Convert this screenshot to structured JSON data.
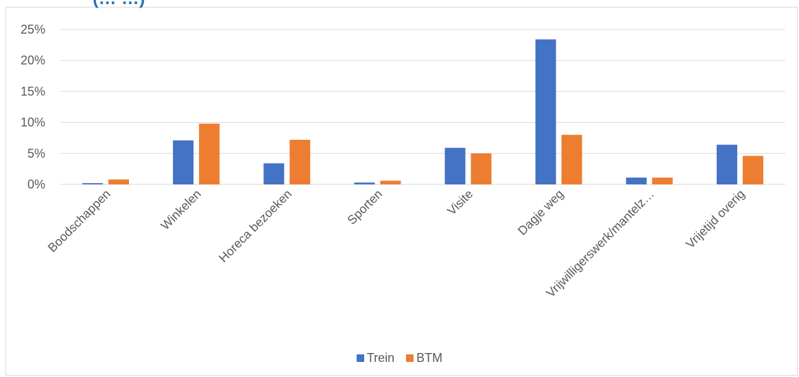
{
  "header": {
    "partial_title": "(… …)"
  },
  "chart_data": {
    "type": "bar",
    "title": "",
    "categories": [
      "Boodschappen",
      "Winkelen",
      "Horeca bezoeken",
      "Sporten",
      "Visite",
      "Dagje weg",
      "Vrijwilligerswerk/mantelz…",
      "Vrijetijd overig"
    ],
    "series": [
      {
        "name": "Trein",
        "color": "#4472c4",
        "values": [
          0.2,
          7.1,
          3.4,
          0.3,
          5.9,
          23.4,
          1.1,
          6.4
        ]
      },
      {
        "name": "BTM",
        "color": "#ed7d31",
        "values": [
          0.8,
          9.8,
          7.2,
          0.6,
          5.0,
          8.0,
          1.1,
          4.6
        ]
      }
    ],
    "ylim": [
      0,
      25
    ],
    "yticks": [
      0,
      5,
      10,
      15,
      20,
      25
    ],
    "ytick_labels": [
      "0%",
      "5%",
      "10%",
      "15%",
      "20%",
      "25%"
    ],
    "grid": true,
    "legend_position": "bottom"
  }
}
